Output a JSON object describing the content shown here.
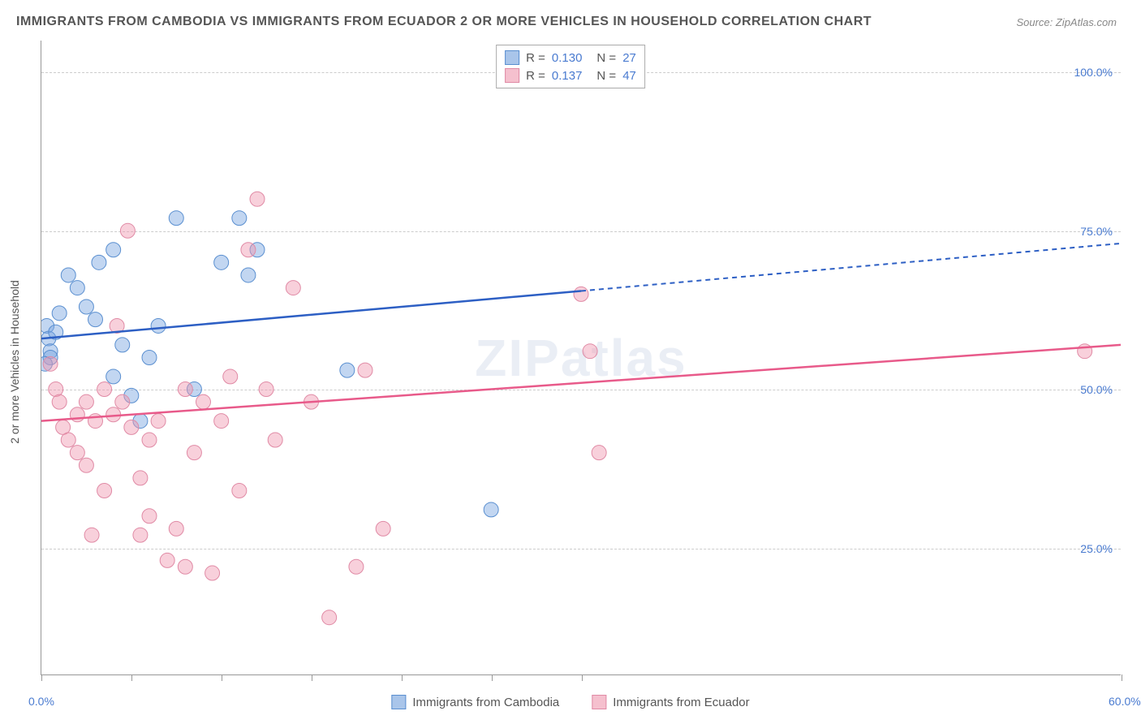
{
  "title": "IMMIGRANTS FROM CAMBODIA VS IMMIGRANTS FROM ECUADOR 2 OR MORE VEHICLES IN HOUSEHOLD CORRELATION CHART",
  "source": "Source: ZipAtlas.com",
  "watermark": "ZIPatlas",
  "y_axis_title": "2 or more Vehicles in Household",
  "chart": {
    "type": "scatter",
    "xlim": [
      0,
      60
    ],
    "ylim": [
      5,
      105
    ],
    "x_ticks": [
      0,
      5,
      10,
      15,
      20,
      25,
      30,
      60
    ],
    "x_labels": [
      {
        "value": 0,
        "label": "0.0%"
      },
      {
        "value": 60,
        "label": "60.0%"
      }
    ],
    "y_gridlines": [
      25,
      50,
      75,
      100
    ],
    "y_labels": [
      {
        "value": 25,
        "label": "25.0%"
      },
      {
        "value": 50,
        "label": "50.0%"
      },
      {
        "value": 75,
        "label": "75.0%"
      },
      {
        "value": 100,
        "label": "100.0%"
      }
    ],
    "grid_color": "#cccccc",
    "background_color": "#ffffff"
  },
  "series": [
    {
      "name": "Immigrants from Cambodia",
      "color_fill": "rgba(120, 165, 225, 0.45)",
      "color_stroke": "#5a8fd0",
      "swatch_fill": "#a9c5ea",
      "swatch_border": "#5a8fd0",
      "line_color": "#2d5fc4",
      "marker_radius": 9,
      "R": "0.130",
      "N": "27",
      "trend": {
        "x1": 0,
        "y1": 58,
        "x2": 60,
        "y2": 73,
        "solid_until_x": 30
      },
      "points": [
        [
          0.3,
          60
        ],
        [
          0.4,
          58
        ],
        [
          0.5,
          56
        ],
        [
          0.5,
          55
        ],
        [
          0.8,
          59
        ],
        [
          1.0,
          62
        ],
        [
          1.5,
          68
        ],
        [
          2.0,
          66
        ],
        [
          2.5,
          63
        ],
        [
          3.0,
          61
        ],
        [
          3.2,
          70
        ],
        [
          4.0,
          72
        ],
        [
          4.0,
          52
        ],
        [
          4.5,
          57
        ],
        [
          5.0,
          49
        ],
        [
          5.5,
          45
        ],
        [
          6.0,
          55
        ],
        [
          6.5,
          60
        ],
        [
          7.5,
          77
        ],
        [
          8.5,
          50
        ],
        [
          10.0,
          70
        ],
        [
          11.0,
          77
        ],
        [
          11.5,
          68
        ],
        [
          12.0,
          72
        ],
        [
          17.0,
          53
        ],
        [
          25.0,
          31
        ],
        [
          0.2,
          54
        ]
      ]
    },
    {
      "name": "Immigrants from Ecuador",
      "color_fill": "rgba(240, 150, 175, 0.45)",
      "color_stroke": "#e08aa5",
      "swatch_fill": "#f5c0ce",
      "swatch_border": "#e08aa5",
      "line_color": "#e85a8a",
      "marker_radius": 9,
      "R": "0.137",
      "N": "47",
      "trend": {
        "x1": 0,
        "y1": 45,
        "x2": 60,
        "y2": 57,
        "solid_until_x": 60
      },
      "points": [
        [
          0.5,
          54
        ],
        [
          0.8,
          50
        ],
        [
          1.0,
          48
        ],
        [
          1.2,
          44
        ],
        [
          1.5,
          42
        ],
        [
          2.0,
          46
        ],
        [
          2.0,
          40
        ],
        [
          2.5,
          38
        ],
        [
          2.5,
          48
        ],
        [
          2.8,
          27
        ],
        [
          3.0,
          45
        ],
        [
          3.5,
          50
        ],
        [
          3.5,
          34
        ],
        [
          4.0,
          46
        ],
        [
          4.5,
          48
        ],
        [
          4.8,
          75
        ],
        [
          5.0,
          44
        ],
        [
          5.5,
          36
        ],
        [
          5.5,
          27
        ],
        [
          6.0,
          42
        ],
        [
          6.0,
          30
        ],
        [
          6.5,
          45
        ],
        [
          7.0,
          23
        ],
        [
          7.5,
          28
        ],
        [
          8.0,
          50
        ],
        [
          8.0,
          22
        ],
        [
          8.5,
          40
        ],
        [
          9.0,
          48
        ],
        [
          9.5,
          21
        ],
        [
          10.0,
          45
        ],
        [
          10.5,
          52
        ],
        [
          11.0,
          34
        ],
        [
          11.5,
          72
        ],
        [
          12.0,
          80
        ],
        [
          12.5,
          50
        ],
        [
          13.0,
          42
        ],
        [
          14.0,
          66
        ],
        [
          15.0,
          48
        ],
        [
          16.0,
          14
        ],
        [
          17.5,
          22
        ],
        [
          18.0,
          53
        ],
        [
          19.0,
          28
        ],
        [
          30.0,
          65
        ],
        [
          30.5,
          56
        ],
        [
          31.0,
          40
        ],
        [
          58.0,
          56
        ],
        [
          4.2,
          60
        ]
      ]
    }
  ],
  "legend_top_labels": {
    "R": "R =",
    "N": "N ="
  },
  "bottom_legend": [
    "Immigrants from Cambodia",
    "Immigrants from Ecuador"
  ]
}
